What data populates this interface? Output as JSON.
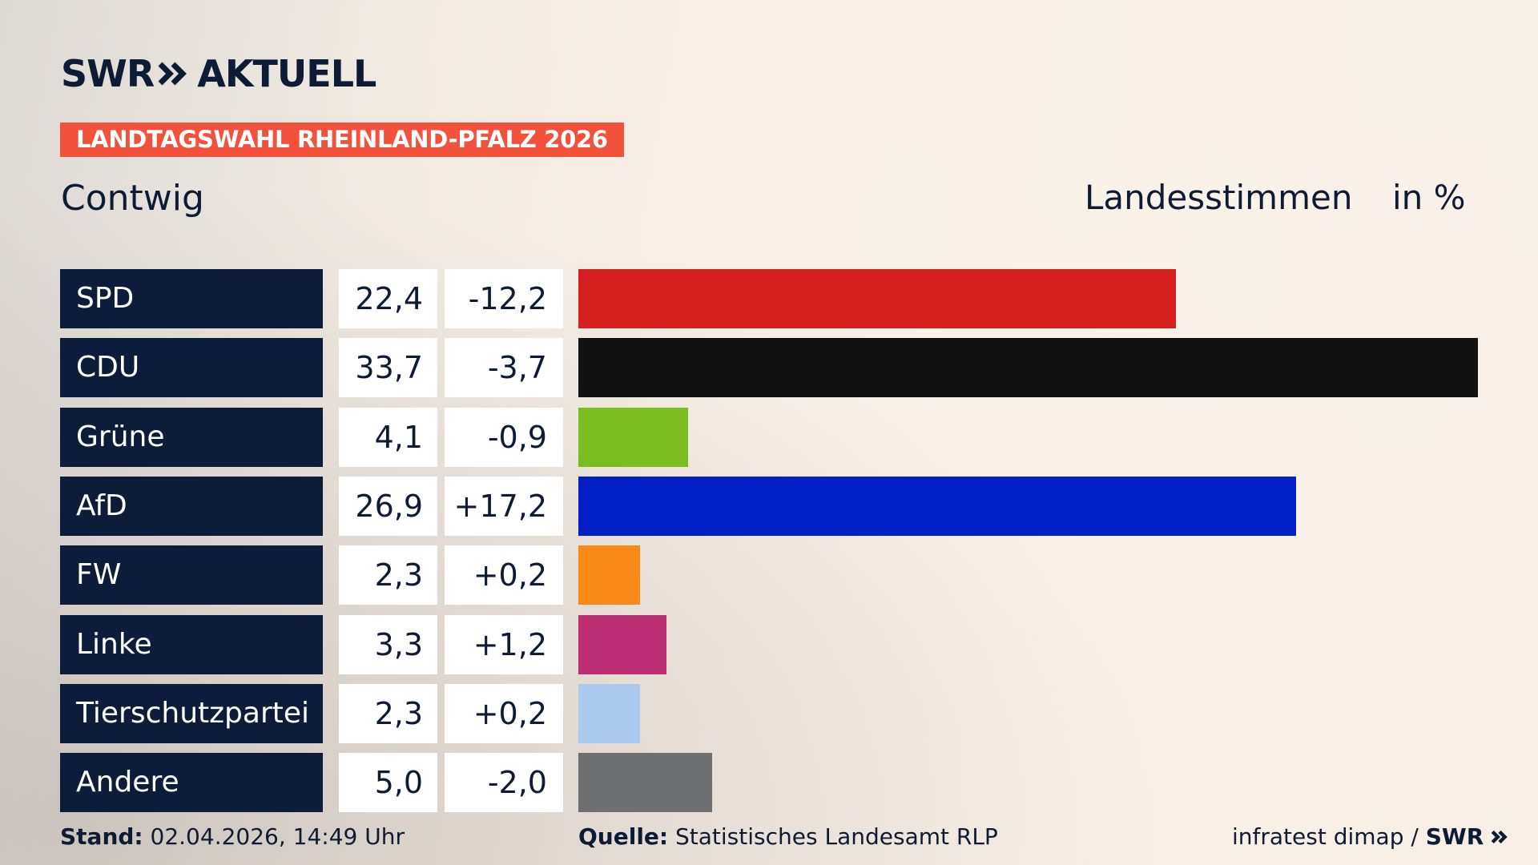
{
  "header": {
    "logo_text_left": "SWR",
    "logo_text_right": "AKTUELL",
    "election_label": "LANDTAGSWAHL RHEINLAND-PFALZ 2026",
    "district": "Contwig",
    "metric": "Landesstimmen",
    "unit": "in %"
  },
  "chart_data": {
    "type": "bar",
    "orientation": "horizontal",
    "categories": [
      "SPD",
      "CDU",
      "Grüne",
      "AfD",
      "FW",
      "Linke",
      "Tierschutzpartei",
      "Andere"
    ],
    "values": [
      22.4,
      33.7,
      4.1,
      26.9,
      2.3,
      3.3,
      2.3,
      5.0
    ],
    "value_labels": [
      "22,4",
      "33,7",
      "4,1",
      "26,9",
      "2,3",
      "3,3",
      "2,3",
      "5,0"
    ],
    "changes": [
      "-12,2",
      "-3,7",
      "-0,9",
      "+17,2",
      "+0,2",
      "+1,2",
      "+0,2",
      "-2,0"
    ],
    "colors": [
      "#d81f1f",
      "#121212",
      "#7abd1e",
      "#0220c8",
      "#fa8a18",
      "#bd2f74",
      "#a9c9ef",
      "#6e6f70"
    ],
    "grid": false,
    "legend": "none"
  },
  "footer": {
    "stand_label": "Stand:",
    "stand_value": "02.04.2026, 14:49 Uhr",
    "source_label": "Quelle:",
    "source_value": "Statistisches Landesamt RLP",
    "credit_text": "infratest dimap /",
    "credit_brand": "SWR"
  },
  "icons": {
    "logo_chevron": "double-chevron-right-icon"
  }
}
